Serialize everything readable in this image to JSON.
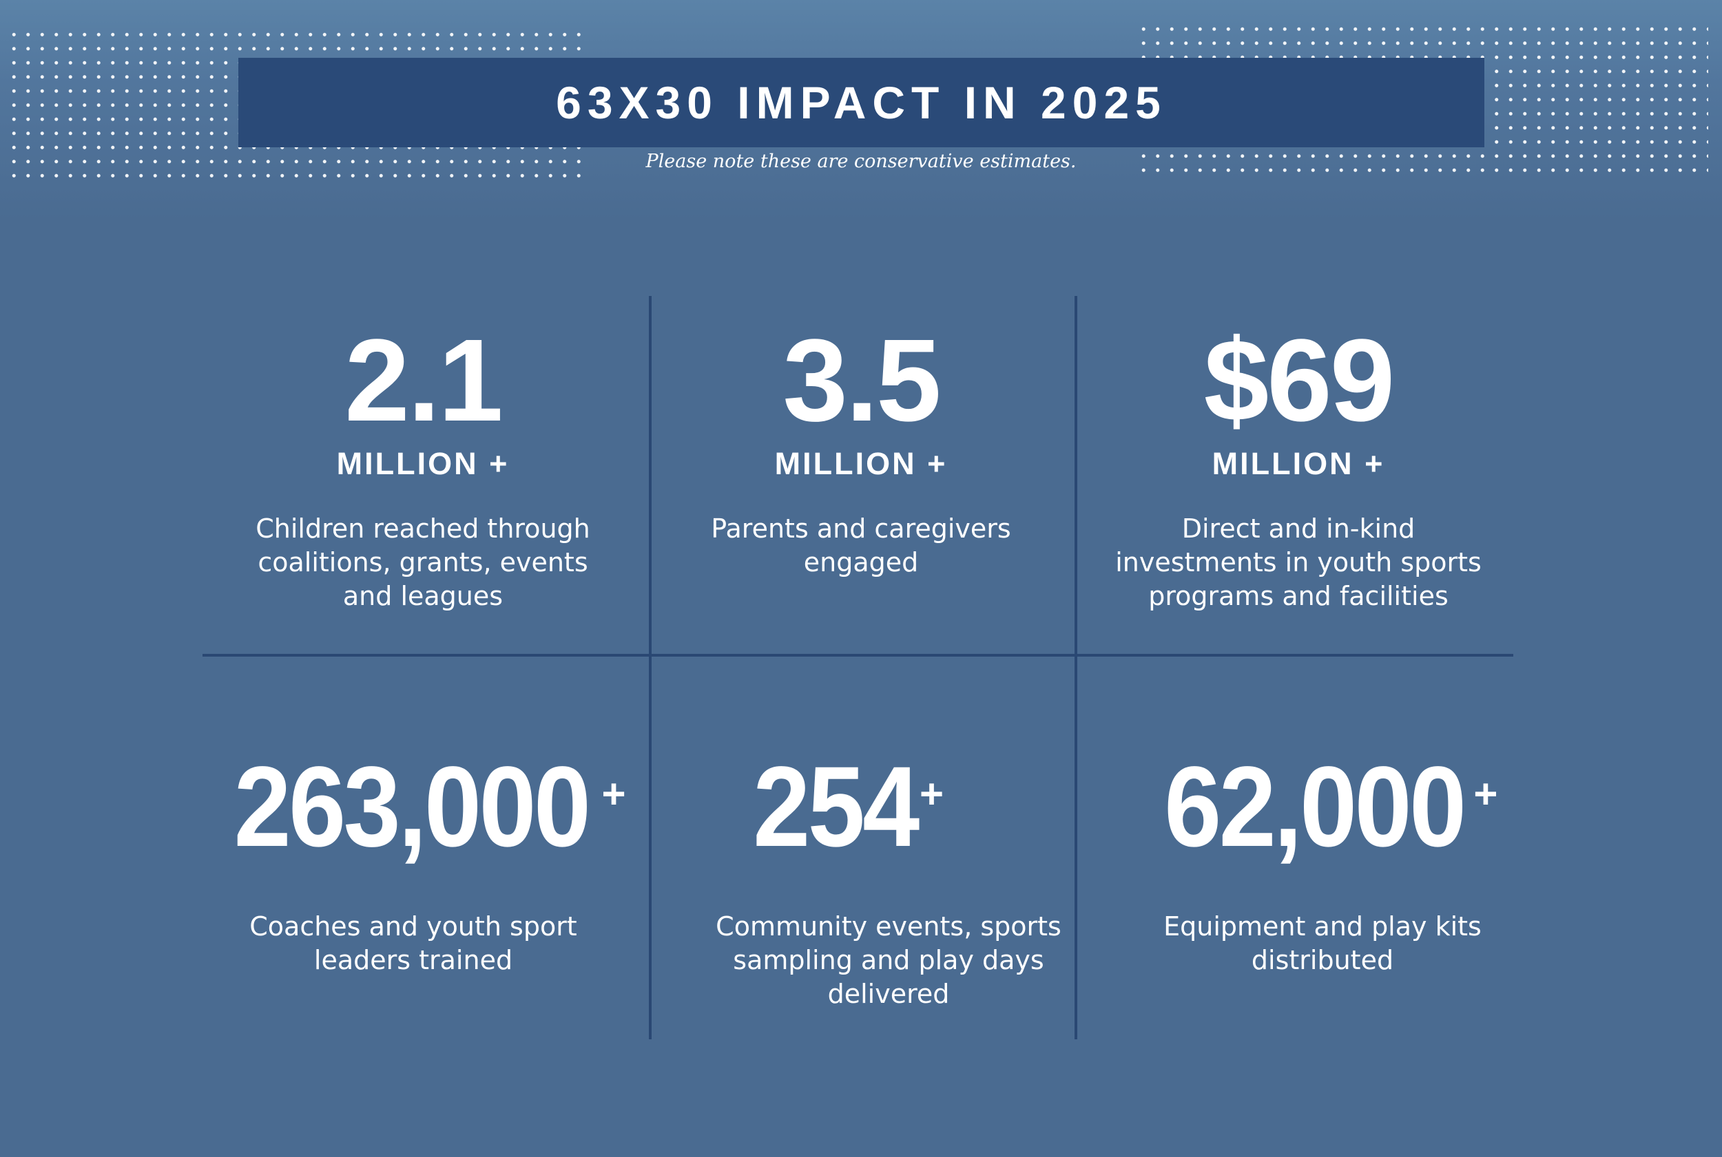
{
  "header": {
    "title": "63X30 IMPACT IN 2025",
    "subtitle": "Please note these are conservative estimates."
  },
  "stats_top": [
    {
      "number": "2.1",
      "unit": "MILLION +",
      "description": [
        "Children reached through",
        "coalitions, grants, events",
        "and leagues"
      ]
    },
    {
      "number": "3.5",
      "unit": "MILLION +",
      "description": [
        "Parents and caregivers",
        "engaged"
      ]
    },
    {
      "number": "$69",
      "unit": "MILLION +",
      "description": [
        "Direct and in-kind",
        "investments in youth sports",
        "programs and facilities"
      ]
    }
  ],
  "stats_bottom": [
    {
      "number": "263,000",
      "suffix": "+",
      "description": [
        "Coaches and youth sport",
        "leaders trained"
      ]
    },
    {
      "number": "254",
      "suffix": "+",
      "description": [
        "Community events, sports",
        "sampling and play days",
        "delivered"
      ]
    },
    {
      "number": "62,000",
      "suffix": "+",
      "description": [
        "Equipment and play kits",
        "distributed"
      ]
    }
  ],
  "colors": {
    "background": "#4a6b91",
    "banner": "#2a4a78",
    "divider": "#2a4873",
    "text": "#ffffff"
  }
}
